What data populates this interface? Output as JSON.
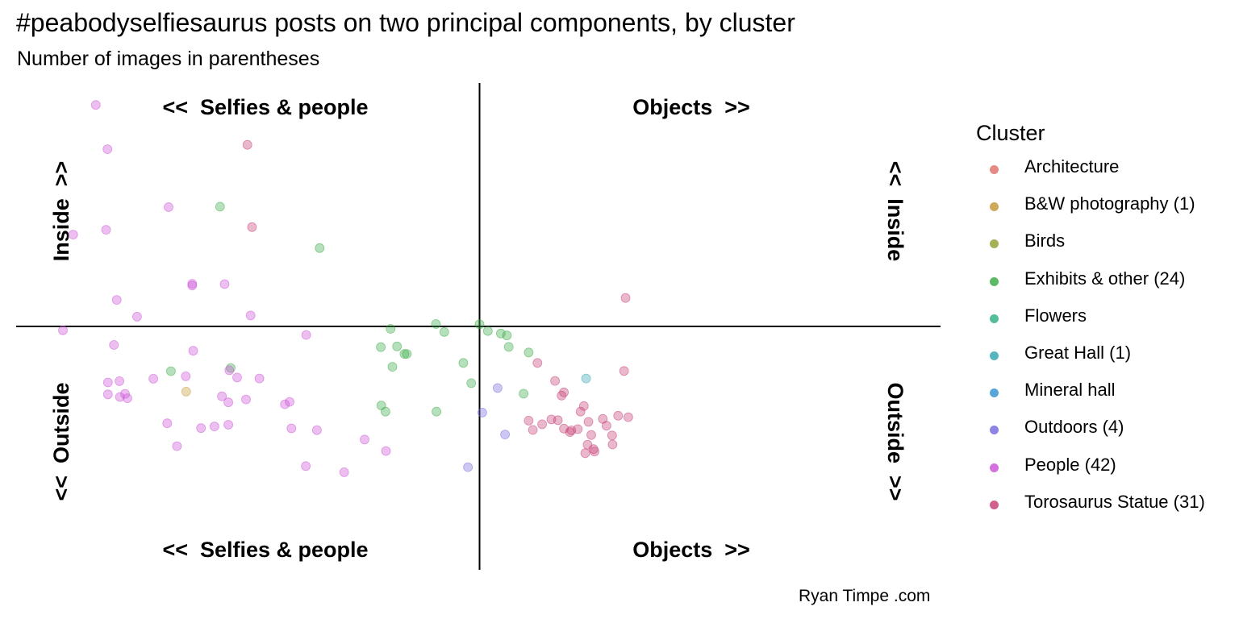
{
  "chart_data": {
    "type": "scatter",
    "title": "#peabodyselfiesaurus posts on two principal components, by cluster",
    "subtitle": "Number of images in parentheses",
    "caption": "Ryan Timpe .com",
    "legend_title": "Cluster",
    "legend_position": "right",
    "grid": false,
    "xlim": [
      -1,
      1
    ],
    "ylim": [
      -1,
      1
    ],
    "quadrant_labels": {
      "top_left": "<<  Selfies & people",
      "top_right": "Objects  >>",
      "bottom_left": "<<  Selfies & people",
      "bottom_right": "Objects  >>",
      "left_top": "Inside  >>",
      "left_bottom": "<<  Outside",
      "right_top": "<<  Inside",
      "right_bottom": "Outside  >>"
    },
    "series": [
      {
        "name": "Architecture",
        "color": "#e0766f",
        "x": [],
        "y": []
      },
      {
        "name": "B&W photography (1)",
        "color": "#c49a3c",
        "x": [
          -0.633
        ],
        "y": [
          -0.268
        ]
      },
      {
        "name": "Birds",
        "color": "#96a33a",
        "x": [],
        "y": []
      },
      {
        "name": "Exhibits & other (24)",
        "color": "#3fad4b",
        "x": [
          -0.56,
          -0.666,
          -0.537,
          -0.345,
          -0.192,
          -0.213,
          -0.178,
          -0.157,
          -0.188,
          -0.212,
          -0.203,
          -0.093,
          -0.094,
          -0.162,
          -0.076,
          -0.035,
          -0.018,
          0.0,
          0.018,
          0.046,
          0.063,
          0.095,
          0.106,
          0.059
        ],
        "y": [
          0.492,
          -0.184,
          -0.171,
          0.322,
          -0.01,
          -0.085,
          -0.082,
          -0.113,
          -0.166,
          -0.325,
          -0.35,
          -0.35,
          0.01,
          -0.113,
          -0.023,
          -0.15,
          -0.233,
          0.009,
          -0.019,
          -0.029,
          -0.084,
          -0.276,
          -0.107,
          -0.037
        ]
      },
      {
        "name": "Flowers",
        "color": "#36b38a",
        "x": [],
        "y": []
      },
      {
        "name": "Great Hall (1)",
        "color": "#3aa8b5",
        "x": [
          0.23
        ],
        "y": [
          -0.214
        ]
      },
      {
        "name": "Mineral hall",
        "color": "#3b95d4",
        "x": [],
        "y": []
      },
      {
        "name": "Outdoors (4)",
        "color": "#7a6fe0",
        "x": [
          0.006,
          0.039,
          0.055,
          -0.025
        ],
        "y": [
          -0.354,
          -0.253,
          -0.444,
          -0.578
        ]
      },
      {
        "name": "People (42)",
        "color": "#cd58d8",
        "x": [
          -0.828,
          -0.803,
          -0.671,
          -0.806,
          -0.877,
          -0.783,
          -0.739,
          -0.62,
          -0.62,
          -0.55,
          -0.494,
          -0.899,
          -0.789,
          -0.802,
          -0.777,
          -0.776,
          -0.704,
          -0.618,
          -0.634,
          -0.556,
          -0.542,
          -0.54,
          -0.523,
          -0.475,
          -0.802,
          -0.765,
          -0.76,
          -0.674,
          -0.601,
          -0.572,
          -0.504,
          -0.542,
          -0.42,
          -0.406,
          -0.374,
          -0.351,
          -0.292,
          -0.248,
          -0.202,
          -0.653,
          -0.41,
          -0.375
        ],
        "y": [
          0.91,
          0.728,
          0.49,
          0.397,
          0.377,
          0.109,
          0.04,
          0.168,
          0.175,
          0.174,
          0.045,
          -0.016,
          -0.076,
          -0.23,
          -0.225,
          -0.29,
          -0.215,
          -0.1,
          -0.205,
          -0.287,
          -0.312,
          -0.18,
          -0.21,
          -0.214,
          -0.279,
          -0.277,
          -0.295,
          -0.398,
          -0.418,
          -0.411,
          -0.3,
          -0.404,
          -0.32,
          -0.419,
          -0.035,
          -0.426,
          -0.599,
          -0.465,
          -0.512,
          -0.492,
          -0.31,
          -0.574
        ]
      },
      {
        "name": "Torosaurus Statue (31)",
        "color": "#c9447a",
        "x": [
          -0.501,
          -0.491,
          0.315,
          0.125,
          0.163,
          0.182,
          0.177,
          0.169,
          0.106,
          0.115,
          0.135,
          0.155,
          0.182,
          0.195,
          0.198,
          0.212,
          0.225,
          0.218,
          0.235,
          0.266,
          0.241,
          0.233,
          0.228,
          0.246,
          0.248,
          0.286,
          0.299,
          0.312,
          0.321,
          0.287,
          0.274
        ],
        "y": [
          0.746,
          0.408,
          0.117,
          -0.15,
          -0.224,
          -0.271,
          -0.284,
          -0.385,
          -0.387,
          -0.425,
          -0.402,
          -0.382,
          -0.42,
          -0.434,
          -0.427,
          -0.422,
          -0.327,
          -0.35,
          -0.392,
          -0.38,
          -0.446,
          -0.486,
          -0.521,
          -0.504,
          -0.514,
          -0.448,
          -0.367,
          -0.183,
          -0.373,
          -0.485,
          -0.408
        ]
      }
    ]
  }
}
